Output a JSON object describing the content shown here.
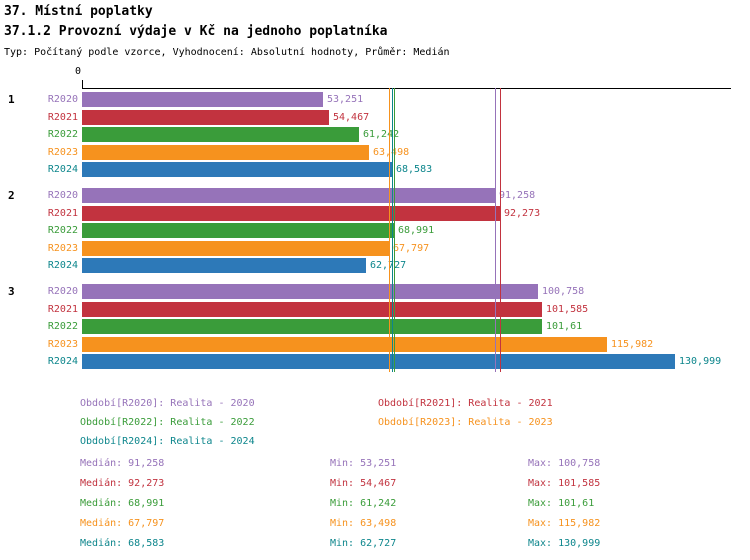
{
  "header": {
    "title": "37. Místní poplatky",
    "subtitle": "37.1.2 Provozní výdaje v Kč na jednoho poplatníka",
    "meta": "Typ: Počítaný podle vzorce, Vyhodnocení: Absolutní hodnoty, Průměr: Medián"
  },
  "axis": {
    "zero_label": "0",
    "max_value": 143.4
  },
  "chart_data": {
    "type": "bar",
    "orientation": "horizontal",
    "title": "37.1.2 Provozní výdaje v Kč na jednoho poplatníka",
    "unit": "Kč",
    "xlim": [
      0,
      143.4
    ],
    "grid": false,
    "legend_position": "bottom",
    "groups": [
      "1",
      "2",
      "3"
    ],
    "series": [
      {
        "name": "R2020",
        "legend": "Období[R2020]: Realita - 2020",
        "text_color": "#9673b9",
        "bar_color": "#9673b9",
        "values": [
          53.251,
          91.258,
          100.758
        ],
        "value_labels": [
          "53,251",
          "91,258",
          "100,758"
        ],
        "median": 91.258,
        "stats": {
          "median": "Medián: 91,258",
          "min": "Min: 53,251",
          "max": "Max: 100,758"
        }
      },
      {
        "name": "R2021",
        "legend": "Období[R2021]: Realita - 2021",
        "text_color": "#c2333f",
        "bar_color": "#c2333f",
        "values": [
          54.467,
          92.273,
          101.585
        ],
        "value_labels": [
          "54,467",
          "92,273",
          "101,585"
        ],
        "median": 92.273,
        "stats": {
          "median": "Medián: 92,273",
          "min": "Min: 54,467",
          "max": "Max: 101,585"
        }
      },
      {
        "name": "R2022",
        "legend": "Období[R2022]: Realita - 2022",
        "text_color": "#3a9c3a",
        "bar_color": "#3a9c3a",
        "values": [
          61.242,
          68.991,
          101.61
        ],
        "value_labels": [
          "61,242",
          "68,991",
          "101,61"
        ],
        "median": 68.991,
        "stats": {
          "median": "Medián: 68,991",
          "min": "Min: 61,242",
          "max": "Max: 101,61"
        }
      },
      {
        "name": "R2023",
        "legend": "Období[R2023]: Realita - 2023",
        "text_color": "#f6921e",
        "bar_color": "#f6921e",
        "values": [
          63.498,
          67.797,
          115.982
        ],
        "value_labels": [
          "63,498",
          "67,797",
          "115,982"
        ],
        "median": 67.797,
        "stats": {
          "median": "Medián: 67,797",
          "min": "Min: 63,498",
          "max": "Max: 115,982"
        }
      },
      {
        "name": "R2024",
        "legend": "Období[R2024]: Realita - 2024",
        "text_color": "#0d868c",
        "bar_color": "#2d79b8",
        "values": [
          68.583,
          62.727,
          130.999
        ],
        "value_labels": [
          "68,583",
          "62,727",
          "130,999"
        ],
        "median": 68.583,
        "stats": {
          "median": "Medián: 68,583",
          "min": "Min: 62,727",
          "max": "Max: 130,999"
        }
      }
    ]
  }
}
